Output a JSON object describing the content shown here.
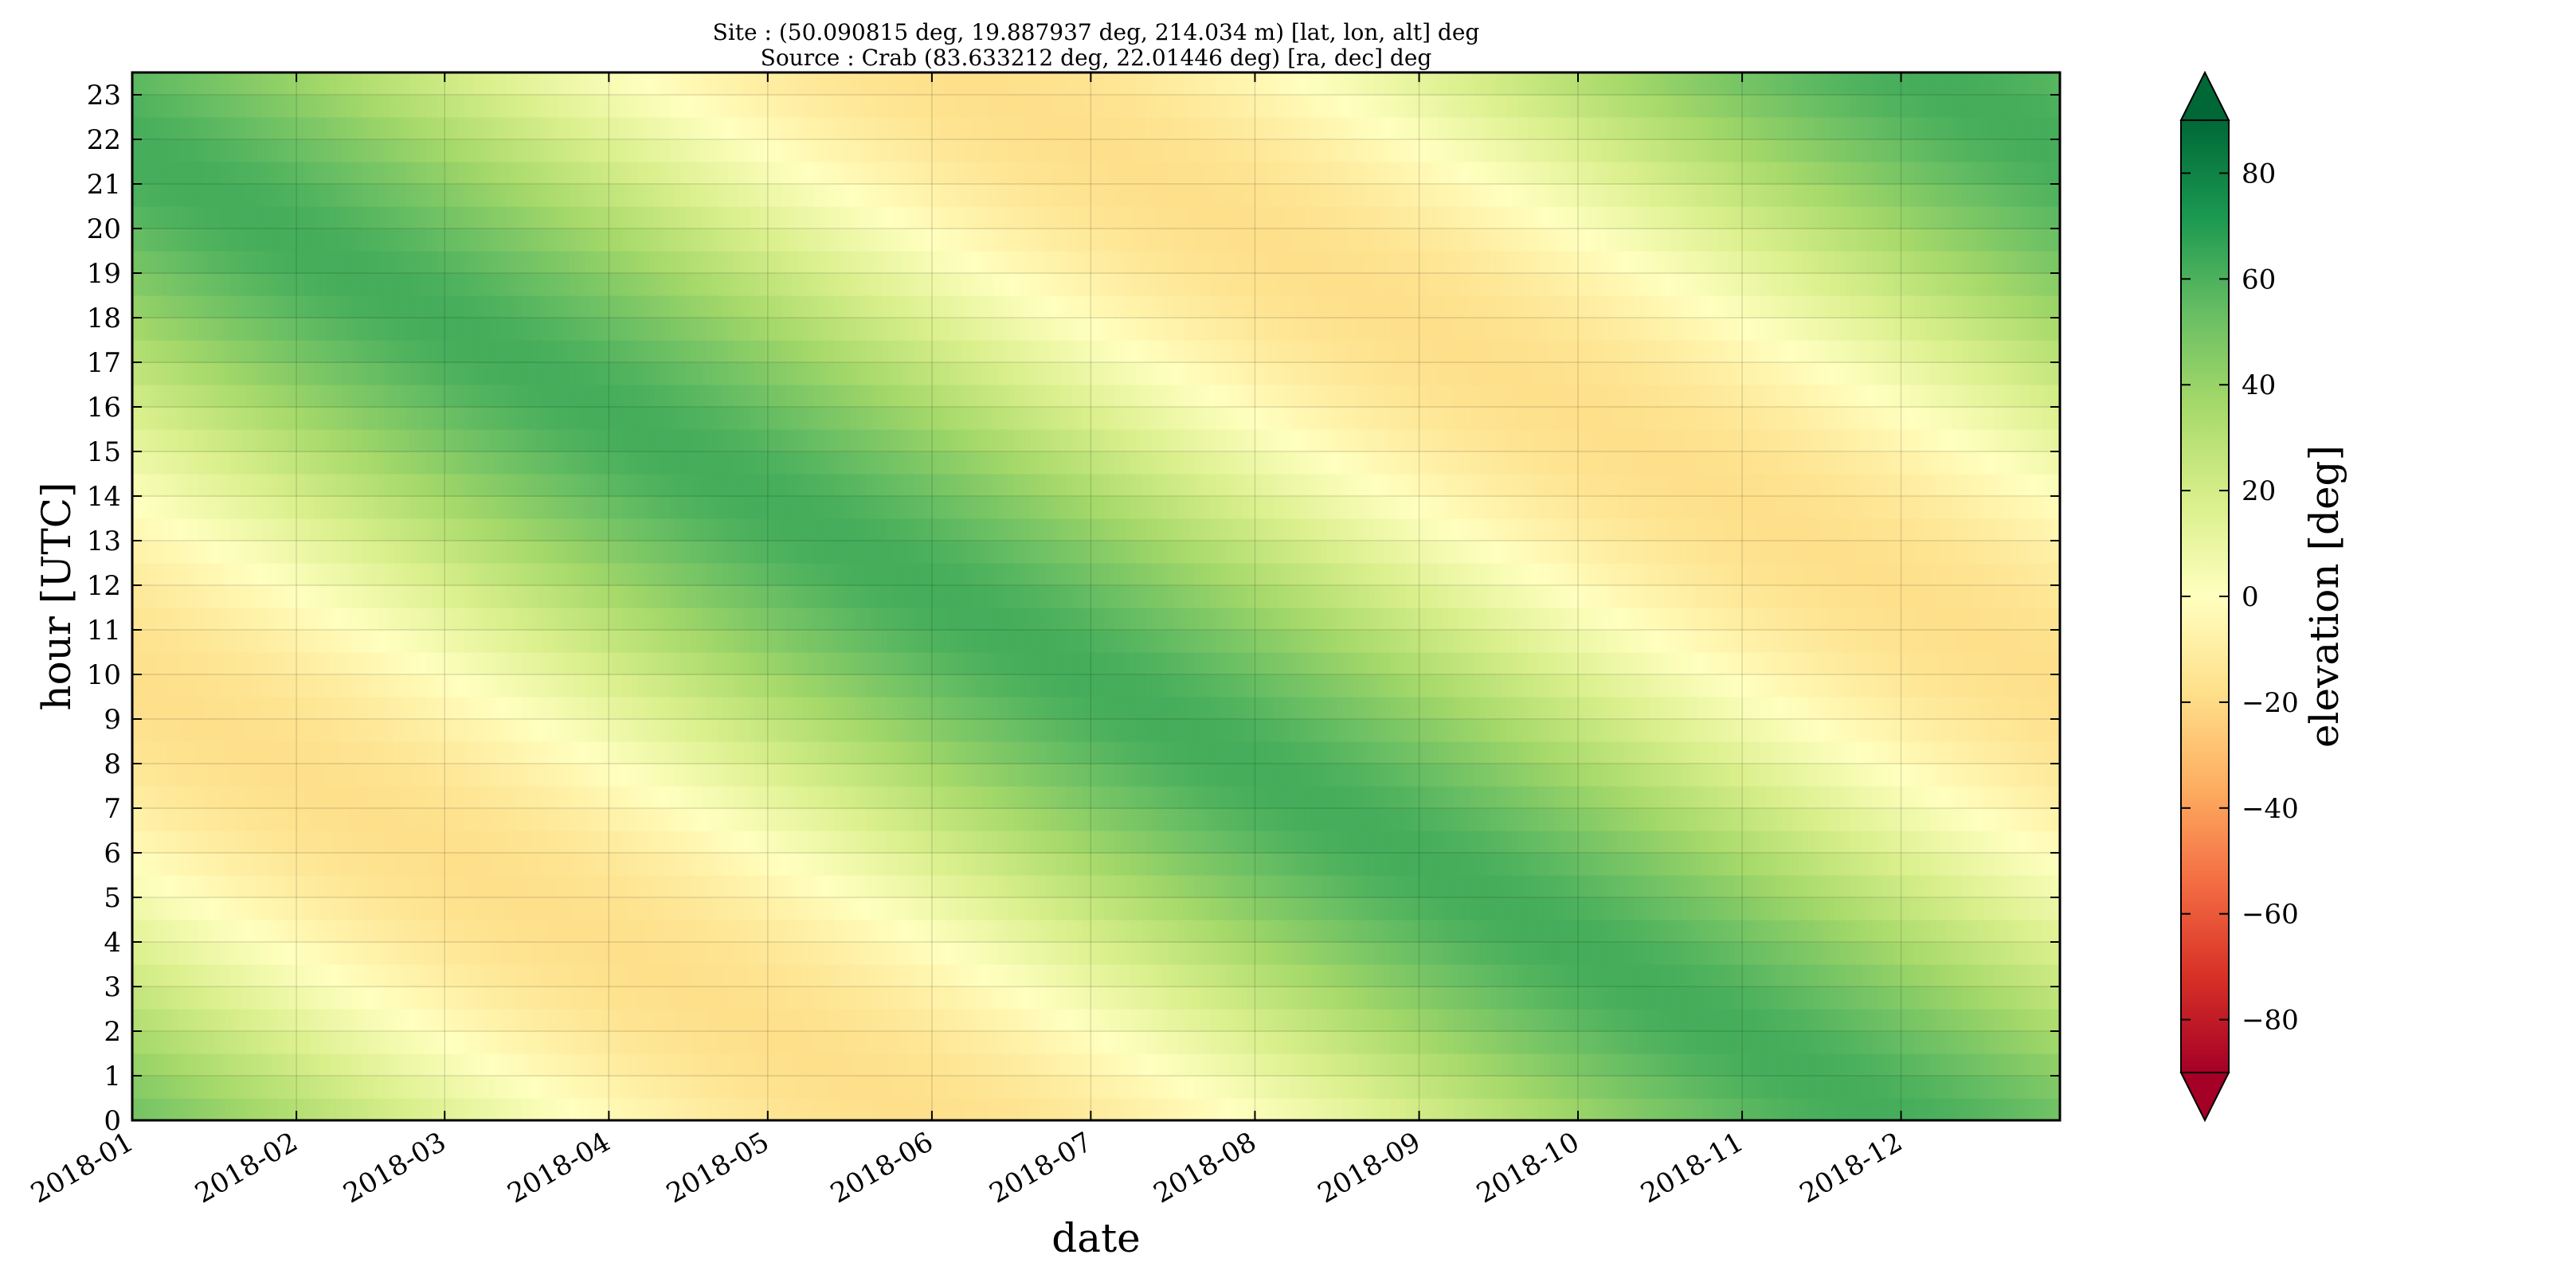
{
  "chart_data": {
    "type": "heatmap",
    "title_lines": [
      "Site : (50.090815 deg, 19.887937 deg, 214.034 m) [lat, lon, alt] deg",
      "Source : Crab (83.633212 deg, 22.01446 deg) [ra, dec] deg"
    ],
    "xlabel": "date",
    "ylabel": "hour [UTC]",
    "x_ticks": [
      "2018-01",
      "2018-02",
      "2018-03",
      "2018-04",
      "2018-05",
      "2018-06",
      "2018-07",
      "2018-08",
      "2018-09",
      "2018-10",
      "2018-11",
      "2018-12"
    ],
    "x_tick_dates": [
      "2018-01-01",
      "2018-02-01",
      "2018-03-01",
      "2018-04-01",
      "2018-05-01",
      "2018-06-01",
      "2018-07-01",
      "2018-08-01",
      "2018-09-01",
      "2018-10-01",
      "2018-11-01",
      "2018-12-01"
    ],
    "x_range": [
      "2018-01-01",
      "2018-12-31"
    ],
    "y_ticks": [
      0,
      1,
      2,
      3,
      4,
      5,
      6,
      7,
      8,
      9,
      10,
      11,
      12,
      13,
      14,
      15,
      16,
      17,
      18,
      19,
      20,
      21,
      22,
      23
    ],
    "y_range": [
      0,
      23.5
    ],
    "grid": true,
    "colorbar": {
      "label": "elevation [deg]",
      "ticks": [
        80,
        60,
        40,
        20,
        0,
        -20,
        -40,
        -60,
        -80
      ],
      "tick_labels": [
        "80",
        "60",
        "40",
        "20",
        "0",
        "−20",
        "−40",
        "−60",
        "−80"
      ],
      "range": [
        -90,
        90
      ],
      "extend": "both",
      "colormap": "RdYlGn",
      "colors": [
        "#a50026",
        "#d73027",
        "#f46d43",
        "#fdae61",
        "#fee08b",
        "#ffffbf",
        "#d9ef8b",
        "#a6d96a",
        "#66bd63",
        "#1a9850",
        "#006837"
      ]
    },
    "source": {
      "name": "Crab",
      "ra_deg": 83.633212,
      "dec_deg": 22.01446
    },
    "site": {
      "lat_deg": 50.090815,
      "lon_deg": 19.887937,
      "alt_m": 214.034
    },
    "samples": [
      {
        "date": "2018-01-15",
        "hour": 20,
        "elevation": 68
      },
      {
        "date": "2018-05-20",
        "hour": 12,
        "elevation": 69
      },
      {
        "date": "2018-08-25",
        "hour": 5,
        "elevation": 70
      },
      {
        "date": "2018-11-20",
        "hour": 23,
        "elevation": 70
      },
      {
        "date": "2018-07-01",
        "hour": 20,
        "elevation": -18
      },
      {
        "date": "2018-02-15",
        "hour": 8,
        "elevation": -17
      }
    ]
  }
}
